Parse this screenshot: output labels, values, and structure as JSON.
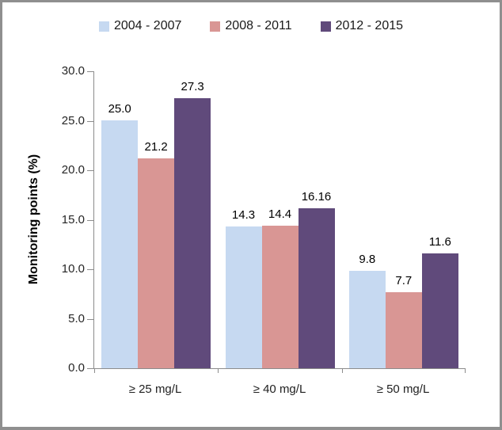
{
  "frame": {
    "border_color": "#8f8f8f",
    "background": "#ffffff"
  },
  "axis": {
    "line_color": "#8c8c8c",
    "tick_text_color": "#262626"
  },
  "chart_data": {
    "type": "bar",
    "title": "",
    "categories": [
      "≥ 25 mg/L",
      "≥ 40 mg/L",
      "≥ 50 mg/L"
    ],
    "series": [
      {
        "name": "2004 - 2007",
        "color": "#C6D9F1",
        "values": [
          25.0,
          14.3,
          9.8
        ],
        "labels": [
          "25.0",
          "14.3",
          "9.8"
        ]
      },
      {
        "name": "2008 - 2011",
        "color": "#D99694",
        "values": [
          21.2,
          14.4,
          7.7
        ],
        "labels": [
          "21.2",
          "14.4",
          "7.7"
        ]
      },
      {
        "name": "2012 - 2015",
        "color": "#604A7B",
        "values": [
          27.3,
          16.16,
          11.6
        ],
        "labels": [
          "27.3",
          "16.16",
          "11.6"
        ]
      }
    ],
    "xlabel": "",
    "ylabel": "Monitoring points (%)",
    "ylim": [
      0,
      30
    ],
    "ytick_step": 5,
    "yticks": [
      "30.0",
      "25.0",
      "20.0",
      "15.0",
      "10.0",
      "5.0",
      "0.0"
    ],
    "grid": false,
    "legend_position": "top-center",
    "data_labels": true
  }
}
